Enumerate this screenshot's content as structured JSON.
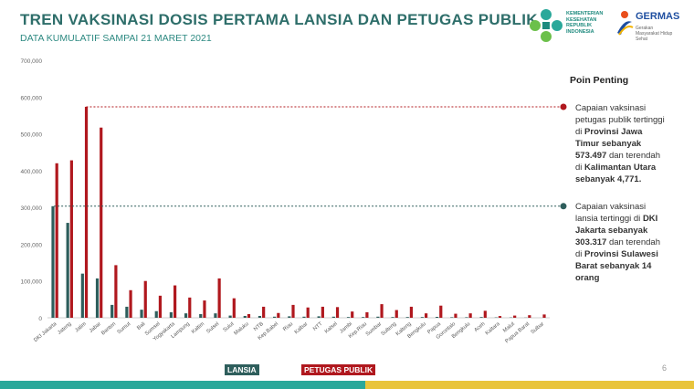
{
  "header": {
    "title": "TREN VAKSINASI DOSIS PERTAMA LANSIA DAN PETUGAS PUBLIK",
    "subtitle": "DATA KUMULATIF SAMPAI 21 MARET 2021"
  },
  "logos": {
    "kemenkes": "KEMENTERIAN KESEHATAN REPUBLIK INDONESIA",
    "germas": "GERMAS",
    "germas_sub": "Gerakan Masyarakat Hidup Sehat"
  },
  "colors": {
    "lansia": "#2e5e5c",
    "petugas": "#b0181e",
    "title": "#2e6e6a",
    "accent_teal": "#2aa89a",
    "accent_yellow": "#e9c43a"
  },
  "chart_data": {
    "type": "bar",
    "ylim": [
      0,
      700000
    ],
    "yticks": [
      "0",
      "100,000",
      "200,000",
      "300,000",
      "400,000",
      "500,000",
      "600,000",
      "700,000"
    ],
    "categories": [
      "DKI Jakarta",
      "Jateng",
      "Jatim",
      "Jabar",
      "Banten",
      "Sumut",
      "Bali",
      "Sumsel",
      "Yogyakarta",
      "Lampung",
      "Kaltim",
      "Sulsel",
      "Sulut",
      "Maluku",
      "NTB",
      "Kep.Babel",
      "Riau",
      "Kalbar",
      "NTT",
      "Kalsel",
      "Jambi",
      "Kep.Riau",
      "Sumbar",
      "Sulteng",
      "Kalteng",
      "Bengkulu",
      "Papua",
      "Gorontalo",
      "Bengkulu",
      "Aceh",
      "Kaltara",
      "Malut",
      "Papua Barat",
      "Sulbar"
    ],
    "series": [
      {
        "name": "LANSIA",
        "values": [
          303317,
          258000,
          120000,
          107000,
          35000,
          30000,
          22000,
          18000,
          15000,
          12000,
          10000,
          12000,
          6000,
          5000,
          5000,
          3000,
          4000,
          3000,
          4000,
          3000,
          2000,
          2000,
          3000,
          2000,
          2000,
          2000,
          2500,
          1500,
          1500,
          2000,
          1000,
          800,
          500,
          14
        ]
      },
      {
        "name": "PETUGAS PUBLIK",
        "values": [
          420000,
          428000,
          573497,
          517000,
          143000,
          75000,
          100000,
          60000,
          88000,
          55000,
          47000,
          107000,
          53000,
          10000,
          30000,
          13000,
          35000,
          28000,
          30000,
          29000,
          17000,
          15000,
          37000,
          21000,
          30000,
          12000,
          33000,
          11000,
          12000,
          19000,
          4771,
          6000,
          7000,
          9000
        ]
      }
    ],
    "reference_lines": [
      573497,
      303317
    ]
  },
  "panel": {
    "title": "Poin Penting",
    "points": [
      {
        "lines": [
          {
            "t": "Capaian vaksinasi",
            "b": false
          },
          {
            "t": "petugas publik tertinggi",
            "b": false
          },
          {
            "t": "di ",
            "b": false,
            "extra": {
              "t": "Provinsi Jawa",
              "b": true
            }
          },
          {
            "t": "Timur sebanyak",
            "b": true
          },
          {
            "t": "573.497",
            "b": true,
            "extra": {
              "t": " dan terendah",
              "b": false
            }
          },
          {
            "t": "di ",
            "b": false,
            "extra": {
              "t": "Kalimantan Utara",
              "b": true
            }
          },
          {
            "t": "sebanyak 4,771.",
            "b": true
          }
        ]
      },
      {
        "lines": [
          {
            "t": "Capaian vaksinasi",
            "b": false
          },
          {
            "t": "lansia tertinggi di ",
            "b": false,
            "extra": {
              "t": "DKI",
              "b": true
            }
          },
          {
            "t": "Jakarta sebanyak",
            "b": true
          },
          {
            "t": "303.317",
            "b": true,
            "extra": {
              "t": " dan terendah",
              "b": false
            }
          },
          {
            "t": "di ",
            "b": false,
            "extra": {
              "t": "Provinsi Sulawesi",
              "b": true
            }
          },
          {
            "t": "Barat sebanyak 14",
            "b": true
          },
          {
            "t": "orang",
            "b": true
          }
        ]
      }
    ]
  },
  "legend": {
    "lansia": "LANSIA",
    "petugas": "PETUGAS PUBLIK"
  },
  "page_number": "6"
}
